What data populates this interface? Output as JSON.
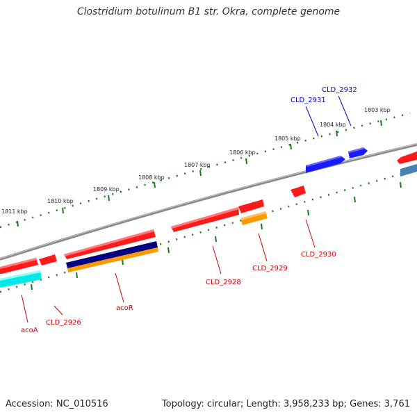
{
  "title": "Clostridium botulinum B1 str. Okra, complete genome",
  "footer": {
    "accession": "Accession: NC_010516",
    "summary": "Topology: circular; Length: 3,958,233 bp; Genes: 3,761"
  },
  "colors": {
    "backbone": "#808080",
    "ruler_tick": "#1a7a1a",
    "gene_red": "#ff1a1a",
    "gene_blue": "#1a1aff",
    "gene_orange": "#ff9900",
    "gene_navy": "#000080",
    "gene_cyan": "#00ffff",
    "gene_steel": "#4682b4",
    "label_red": "#cc0000",
    "label_blue": "#0000cc"
  },
  "ruler_labels": [
    "1811 kbp",
    "1810 kbp",
    "1809 kbp",
    "1808 kbp",
    "1807 kbp",
    "1806 kbp",
    "1805 kbp",
    "1804 kbp",
    "1803 kbp"
  ],
  "gene_labels": [
    {
      "name": "acoA",
      "color": "red"
    },
    {
      "name": "CLD_2926",
      "color": "red"
    },
    {
      "name": "acoR",
      "color": "red"
    },
    {
      "name": "CLD_2928",
      "color": "red"
    },
    {
      "name": "CLD_2929",
      "color": "red"
    },
    {
      "name": "CLD_2930",
      "color": "red"
    },
    {
      "name": "CLD_2931",
      "color": "blue"
    },
    {
      "name": "CLD_2932",
      "color": "blue"
    }
  ]
}
